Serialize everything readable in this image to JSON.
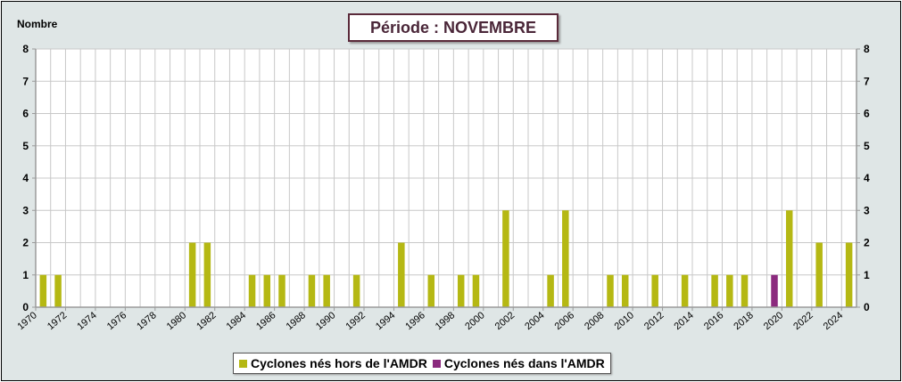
{
  "chart_data": {
    "type": "bar",
    "title": "Période : NOVEMBRE",
    "ylabel": "Nombre",
    "xlabel": "",
    "ylim": [
      0,
      8
    ],
    "yticks": [
      "0",
      "1",
      "2",
      "3",
      "4",
      "5",
      "6",
      "7",
      "8"
    ],
    "xlim": [
      1970,
      2025
    ],
    "xticks": [
      "1970",
      "1972",
      "1974",
      "1976",
      "1978",
      "1980",
      "1982",
      "1984",
      "1986",
      "1988",
      "1990",
      "1992",
      "1994",
      "1996",
      "1998",
      "2000",
      "2002",
      "2004",
      "2006",
      "2008",
      "2010",
      "2012",
      "2014",
      "2016",
      "2018",
      "2020",
      "2022",
      "2024"
    ],
    "grid": true,
    "legend_position": "bottom",
    "years": [
      1970,
      1971,
      1972,
      1973,
      1974,
      1975,
      1976,
      1977,
      1978,
      1979,
      1980,
      1981,
      1982,
      1983,
      1984,
      1985,
      1986,
      1987,
      1988,
      1989,
      1990,
      1991,
      1992,
      1993,
      1994,
      1995,
      1996,
      1997,
      1998,
      1999,
      2000,
      2001,
      2002,
      2003,
      2004,
      2005,
      2006,
      2007,
      2008,
      2009,
      2010,
      2011,
      2012,
      2013,
      2014,
      2015,
      2016,
      2017,
      2018,
      2019,
      2020,
      2021,
      2022,
      2023,
      2024
    ],
    "series": [
      {
        "name": "Cyclones nés hors de l'AMDR",
        "color": "#b5b813",
        "values": [
          1,
          1,
          0,
          0,
          0,
          0,
          0,
          0,
          0,
          0,
          2,
          2,
          0,
          0,
          1,
          1,
          1,
          0,
          1,
          1,
          0,
          1,
          0,
          0,
          2,
          0,
          1,
          0,
          1,
          1,
          0,
          3,
          0,
          0,
          1,
          3,
          0,
          0,
          1,
          1,
          0,
          1,
          0,
          1,
          0,
          1,
          1,
          1,
          0,
          0,
          3,
          0,
          2,
          0,
          2
        ]
      },
      {
        "name": "Cyclones nés dans l'AMDR",
        "color": "#8b2a7e",
        "values": [
          0,
          0,
          0,
          0,
          0,
          0,
          0,
          0,
          0,
          0,
          0,
          0,
          0,
          0,
          0,
          0,
          0,
          0,
          0,
          0,
          0,
          0,
          0,
          0,
          0,
          0,
          0,
          0,
          0,
          0,
          0,
          0,
          0,
          0,
          0,
          0,
          0,
          0,
          0,
          0,
          0,
          0,
          0,
          0,
          0,
          0,
          0,
          0,
          0,
          1,
          0,
          0,
          0,
          0,
          0
        ]
      }
    ]
  }
}
